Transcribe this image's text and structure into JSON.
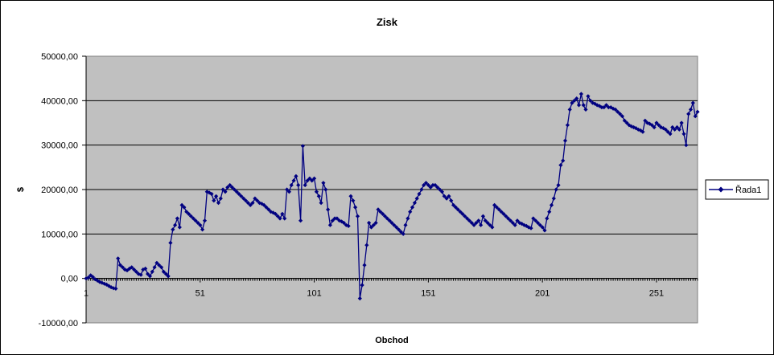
{
  "chart_data": {
    "type": "line",
    "title": "Zisk",
    "xlabel": "Obchod",
    "ylabel": "$",
    "ylim": [
      -10000,
      50000
    ],
    "y_ticks": [
      -10000,
      0,
      10000,
      20000,
      30000,
      40000,
      50000
    ],
    "y_tick_labels": [
      "-10000,00",
      "0,00",
      "10000,00",
      "20000,00",
      "30000,00",
      "40000,00",
      "50000,00"
    ],
    "x_tick_labels": [
      "1",
      "51",
      "101",
      "151",
      "201",
      "251"
    ],
    "grid": "horizontal major gridlines",
    "plot_background": "#c0c0c0",
    "legend_position": "right",
    "colors": {
      "series": "#000080",
      "grid": "#000000",
      "plot_background": "#c0c0c0"
    },
    "series": [
      {
        "name": "Řada1",
        "marker": "diamond",
        "x_start": 1,
        "values": [
          0,
          200,
          700,
          300,
          -200,
          -500,
          -800,
          -1000,
          -1200,
          -1400,
          -1700,
          -2000,
          -2200,
          -2300,
          4500,
          3000,
          2500,
          2000,
          1800,
          2200,
          2500,
          2000,
          1500,
          1000,
          800,
          2000,
          2200,
          1000,
          500,
          1500,
          2500,
          3500,
          3000,
          2500,
          1500,
          1000,
          500,
          8000,
          11000,
          12000,
          13500,
          11500,
          16500,
          16000,
          15000,
          14500,
          14000,
          13500,
          13000,
          12500,
          12000,
          11000,
          13000,
          19500,
          19300,
          19000,
          17500,
          18500,
          17000,
          18000,
          20000,
          19500,
          20500,
          21000,
          20500,
          20000,
          19500,
          19000,
          18500,
          18000,
          17500,
          17000,
          16500,
          17000,
          18000,
          17500,
          17000,
          16800,
          16500,
          16000,
          15500,
          15000,
          14800,
          14500,
          14000,
          13500,
          14500,
          13500,
          20000,
          19500,
          21000,
          22000,
          23000,
          21000,
          13000,
          29800,
          21000,
          22000,
          22500,
          22000,
          22500,
          19500,
          18500,
          17000,
          21500,
          20000,
          15500,
          12000,
          13000,
          13500,
          13500,
          13000,
          12800,
          12500,
          12000,
          11800,
          18500,
          17500,
          16000,
          14000,
          -4500,
          -1500,
          3000,
          7500,
          12500,
          11500,
          12000,
          12500,
          15500,
          15000,
          14500,
          14000,
          13500,
          13000,
          12500,
          12000,
          11500,
          11000,
          10500,
          10000,
          12000,
          13500,
          15000,
          16000,
          17000,
          18000,
          19000,
          20000,
          21000,
          21500,
          21000,
          20500,
          21000,
          21000,
          20500,
          20000,
          19500,
          18500,
          18000,
          18500,
          17500,
          16500,
          16000,
          15500,
          15000,
          14500,
          14000,
          13500,
          13000,
          12500,
          12000,
          12500,
          13000,
          12000,
          14000,
          13000,
          12500,
          12000,
          11500,
          16500,
          16000,
          15500,
          15000,
          14500,
          14000,
          13500,
          13000,
          12500,
          12000,
          13000,
          12500,
          12300,
          12000,
          11800,
          11500,
          11300,
          13500,
          13000,
          12500,
          12000,
          11500,
          10800,
          13500,
          15000,
          16500,
          18000,
          20000,
          21000,
          25500,
          26500,
          31000,
          34500,
          38000,
          39500,
          40000,
          40500,
          39000,
          41500,
          39000,
          38000,
          41000,
          40000,
          39500,
          39300,
          39000,
          38800,
          38500,
          38500,
          39000,
          38500,
          38500,
          38200,
          38000,
          37500,
          37000,
          36500,
          35500,
          35000,
          34500,
          34200,
          34000,
          33800,
          33500,
          33300,
          33000,
          35500,
          35000,
          34800,
          34500,
          34000,
          35000,
          34500,
          34000,
          33800,
          33500,
          33000,
          32500,
          34000,
          33500,
          34000,
          33500,
          35000,
          32500,
          30000,
          37000,
          38000,
          39500,
          36500,
          37500
        ]
      }
    ]
  }
}
